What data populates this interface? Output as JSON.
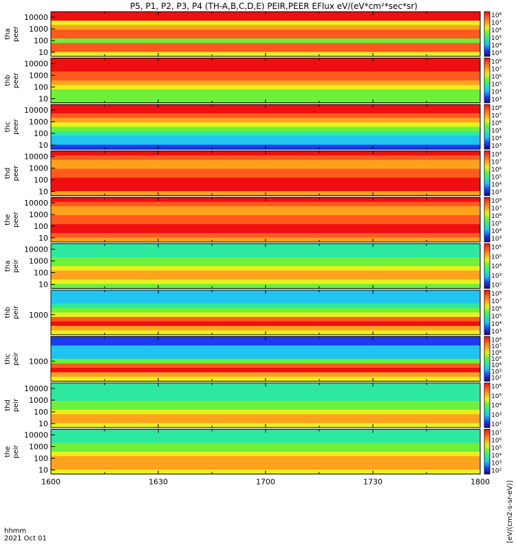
{
  "chart_data": {
    "type": "heatmap",
    "title": "P5, P1, P2, P3, P4 (TH-A,B,C,D,E) PEIR,PEER EFlux eV/(eV*cm²*sec*sr)",
    "colorbar_label": "[eV/(cm2-s-sr-eV)]",
    "x_tick_labels": [
      "1600",
      "1630",
      "1700",
      "1730",
      "1800"
    ],
    "x_label_top": "hhmm",
    "x_label_bottom": "2021 Oct 01",
    "y_scale": "log",
    "colormap": [
      "#1a0a78",
      "#1c3cf2",
      "#20c4f0",
      "#2ee8a0",
      "#6ef03a",
      "#e8f020",
      "#ffa21e",
      "#ff5a1e",
      "#ee1010"
    ],
    "panels": [
      {
        "name": "tha_peer",
        "label_line1": "tha",
        "label_line2": "peer",
        "y_ticks": [
          "10000",
          "1000",
          "100",
          "10"
        ],
        "cbar_ticks": [
          "10⁸",
          "10⁷",
          "10⁶",
          "10⁵",
          "10⁴",
          "10³"
        ],
        "profile": [
          0.95,
          0.9,
          0.62,
          0.72,
          0.84,
          0.8,
          0.5,
          0.86,
          0.88,
          0.6
        ]
      },
      {
        "name": "thb_peer",
        "label_line1": "thb",
        "label_line2": "peer",
        "y_ticks": [
          "10000",
          "1000",
          "100",
          "10"
        ],
        "cbar_ticks": [
          "10⁸",
          "10⁷",
          "10⁶",
          "10⁵",
          "10⁴",
          "10³"
        ],
        "profile": [
          1.0,
          0.95,
          0.92,
          0.85,
          0.78,
          0.7,
          0.62,
          0.55,
          0.5,
          0.48
        ]
      },
      {
        "name": "thc_peer",
        "label_line1": "thc",
        "label_line2": "peer",
        "y_ticks": [
          "10000",
          "1000",
          "100",
          "10"
        ],
        "cbar_ticks": [
          "10⁸",
          "10⁷",
          "10⁶",
          "10⁵",
          "10⁴",
          "10³"
        ],
        "profile": [
          0.98,
          0.92,
          0.82,
          0.72,
          0.62,
          0.52,
          0.42,
          0.3,
          0.24,
          0.22
        ]
      },
      {
        "name": "thd_peer",
        "label_line1": "thd",
        "label_line2": "peer",
        "y_ticks": [
          "10000",
          "1000",
          "100",
          "10"
        ],
        "cbar_ticks": [
          "10⁸",
          "10⁷",
          "10⁶",
          "10⁵",
          "10⁴",
          "10³"
        ],
        "profile": [
          0.95,
          0.88,
          0.7,
          0.74,
          0.82,
          0.88,
          0.92,
          0.93,
          0.9,
          0.7
        ]
      },
      {
        "name": "the_peer",
        "label_line1": "the",
        "label_line2": "peer",
        "y_ticks": [
          "10000",
          "1000",
          "100",
          "10"
        ],
        "cbar_ticks": [
          "10⁸",
          "10⁷",
          "10⁶",
          "10⁵",
          "10⁴",
          "10³"
        ],
        "profile": [
          0.95,
          0.86,
          0.68,
          0.72,
          0.8,
          0.86,
          0.9,
          0.9,
          0.86,
          0.7
        ]
      },
      {
        "name": "tha_peir",
        "label_line1": "tha",
        "label_line2": "peir",
        "y_ticks": [
          "10000",
          "1000",
          "100",
          "10"
        ],
        "cbar_ticks": [
          "10⁶",
          "10⁵",
          "10⁴",
          "10³",
          "10²"
        ],
        "profile": [
          0.35,
          0.36,
          0.4,
          0.45,
          0.52,
          0.6,
          0.68,
          0.72,
          0.66,
          0.55
        ]
      },
      {
        "name": "thb_peir",
        "label_line1": "thb",
        "label_line2": "peir",
        "y_ticks": [
          "1000"
        ],
        "cbar_ticks": [
          "10⁸",
          "10⁷",
          "10⁶",
          "10⁵",
          "10⁴",
          "10³"
        ],
        "profile": [
          0.3,
          0.3,
          0.32,
          0.38,
          0.5,
          0.66,
          0.86,
          0.95,
          0.7,
          0.6
        ]
      },
      {
        "name": "thc_peir",
        "label_line1": "thc",
        "label_line2": "peir",
        "y_ticks": [
          "1000"
        ],
        "cbar_ticks": [
          "10⁸",
          "10⁷",
          "10⁶",
          "10⁵",
          "10⁴",
          "10³",
          "10²"
        ],
        "profile": [
          0.22,
          0.22,
          0.24,
          0.26,
          0.28,
          0.5,
          0.8,
          0.95,
          0.7,
          0.6
        ]
      },
      {
        "name": "thd_peir",
        "label_line1": "thd",
        "label_line2": "peir",
        "y_ticks": [
          "10000",
          "1000",
          "100",
          "10"
        ],
        "cbar_ticks": [
          "10⁶",
          "10⁵",
          "10⁴",
          "10³",
          "10²"
        ],
        "profile": [
          0.35,
          0.36,
          0.38,
          0.42,
          0.48,
          0.55,
          0.62,
          0.7,
          0.68,
          0.62
        ]
      },
      {
        "name": "the_peir",
        "label_line1": "the",
        "label_line2": "peir",
        "y_ticks": [
          "10000",
          "1000",
          "100",
          "10"
        ],
        "cbar_ticks": [
          "10⁷",
          "10⁶",
          "10⁵",
          "10⁴",
          "10³",
          "10²"
        ],
        "profile": [
          0.35,
          0.36,
          0.4,
          0.45,
          0.52,
          0.6,
          0.68,
          0.75,
          0.72,
          0.62
        ]
      }
    ]
  }
}
